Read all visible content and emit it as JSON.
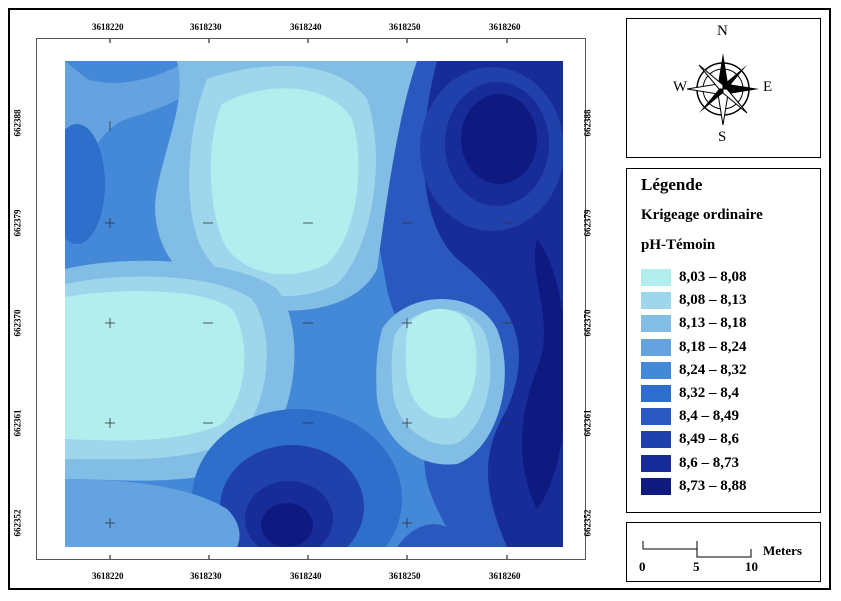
{
  "map": {
    "x_ticks": [
      "3618220",
      "3618230",
      "3618240",
      "3618250",
      "3618260"
    ],
    "y_ticks": [
      "662388",
      "662379",
      "662370",
      "662361",
      "662352"
    ],
    "colors": [
      "#b3eeef",
      "#9ed6ec",
      "#82bde6",
      "#64a3e0",
      "#4488d8",
      "#2e6fcb",
      "#2a58be",
      "#2040ac",
      "#172c98",
      "#0e1a80"
    ]
  },
  "compass": {
    "n": "N",
    "s": "S",
    "e": "E",
    "w": "W"
  },
  "legend": {
    "title": "Légende",
    "method": "Krigeage ordinaire",
    "variable": "pH-Témoin",
    "classes": [
      {
        "label": "8,03 – 8,08",
        "color": "#b3eeef"
      },
      {
        "label": "8,08 – 8,13",
        "color": "#9ed6ec"
      },
      {
        "label": "8,13 – 8,18",
        "color": "#82bde6"
      },
      {
        "label": "8,18 – 8,24",
        "color": "#64a3e0"
      },
      {
        "label": "8,24 – 8,32",
        "color": "#4488d8"
      },
      {
        "label": "8,32 – 8,4",
        "color": "#2e6fcb"
      },
      {
        "label": "8,4 – 8,49",
        "color": "#2a58be"
      },
      {
        "label": "8,49 – 8,6",
        "color": "#2040ac"
      },
      {
        "label": "8,6 – 8,73",
        "color": "#172c98"
      },
      {
        "label": "8,73 – 8,88",
        "color": "#0e1a80"
      }
    ]
  },
  "scale": {
    "labels": [
      "0",
      "5",
      "10"
    ],
    "unit": "Meters"
  }
}
